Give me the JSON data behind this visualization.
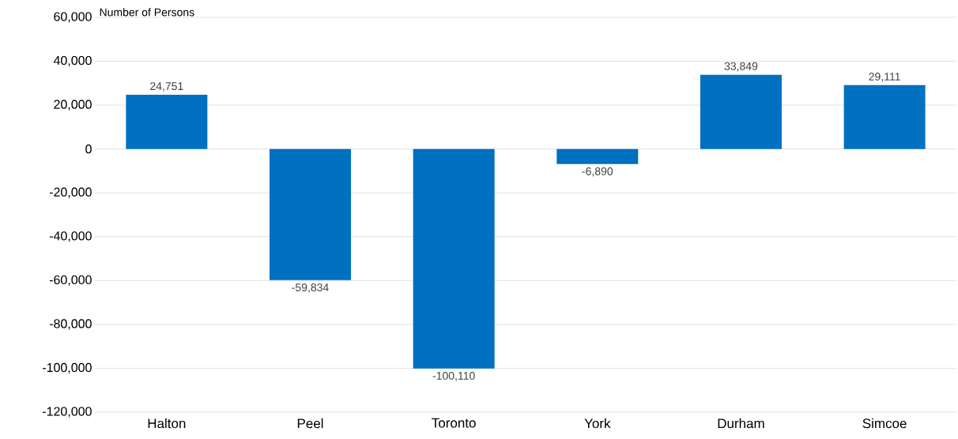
{
  "chart_data": {
    "type": "bar",
    "ylabel": "Number of Persons",
    "categories": [
      "Halton",
      "Peel",
      "Toronto",
      "York",
      "Durham",
      "Simcoe"
    ],
    "values": [
      24751,
      -59834,
      -100110,
      -6890,
      33849,
      29111
    ],
    "value_labels": [
      "24,751",
      "-59,834",
      "-100,110",
      "-6,890",
      "33,849",
      "29,111"
    ],
    "color": "#0070c0",
    "ylim": [
      -120000,
      60000
    ],
    "yticks": [
      {
        "value": -120000,
        "label": "-120,000"
      },
      {
        "value": -100000,
        "label": "-100,000"
      },
      {
        "value": -80000,
        "label": "-80,000"
      },
      {
        "value": -60000,
        "label": "-60,000"
      },
      {
        "value": -40000,
        "label": "-40,000"
      },
      {
        "value": -20000,
        "label": "-20,000"
      },
      {
        "value": 0,
        "label": "0"
      },
      {
        "value": 20000,
        "label": "20,000"
      },
      {
        "value": 40000,
        "label": "40,000"
      },
      {
        "value": 60000,
        "label": "60,000"
      }
    ],
    "grid": "y"
  }
}
